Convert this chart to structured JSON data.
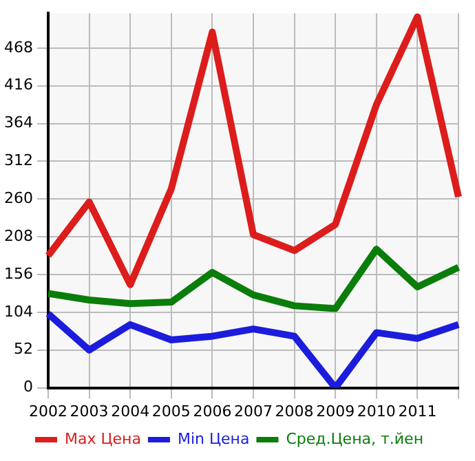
{
  "chart_data": {
    "type": "line",
    "categories": [
      "2002",
      "2003",
      "2004",
      "2005",
      "2006",
      "2007",
      "2008",
      "2009",
      "2010",
      "2011",
      null
    ],
    "series": [
      {
        "name": "Max Цена",
        "color": "#dd1c1c",
        "values": [
          182,
          256,
          142,
          274,
          490,
          211,
          189,
          225,
          390,
          511,
          263
        ]
      },
      {
        "name": "Min Цена",
        "color": "#1c1cdd",
        "values": [
          102,
          52,
          87,
          66,
          71,
          81,
          71,
          0,
          76,
          68,
          87
        ]
      },
      {
        "name": "Сред.Цена, т.йен",
        "color": "#0a7d0a",
        "values": [
          130,
          121,
          116,
          118,
          159,
          128,
          113,
          109,
          191,
          139,
          166
        ]
      }
    ],
    "ylim": [
      0,
      516
    ],
    "yticks": [
      0,
      52,
      104,
      156,
      208,
      260,
      312,
      364,
      416,
      468
    ],
    "grid": true,
    "legend": "bottom",
    "marker": "none",
    "line_style": "solid"
  }
}
